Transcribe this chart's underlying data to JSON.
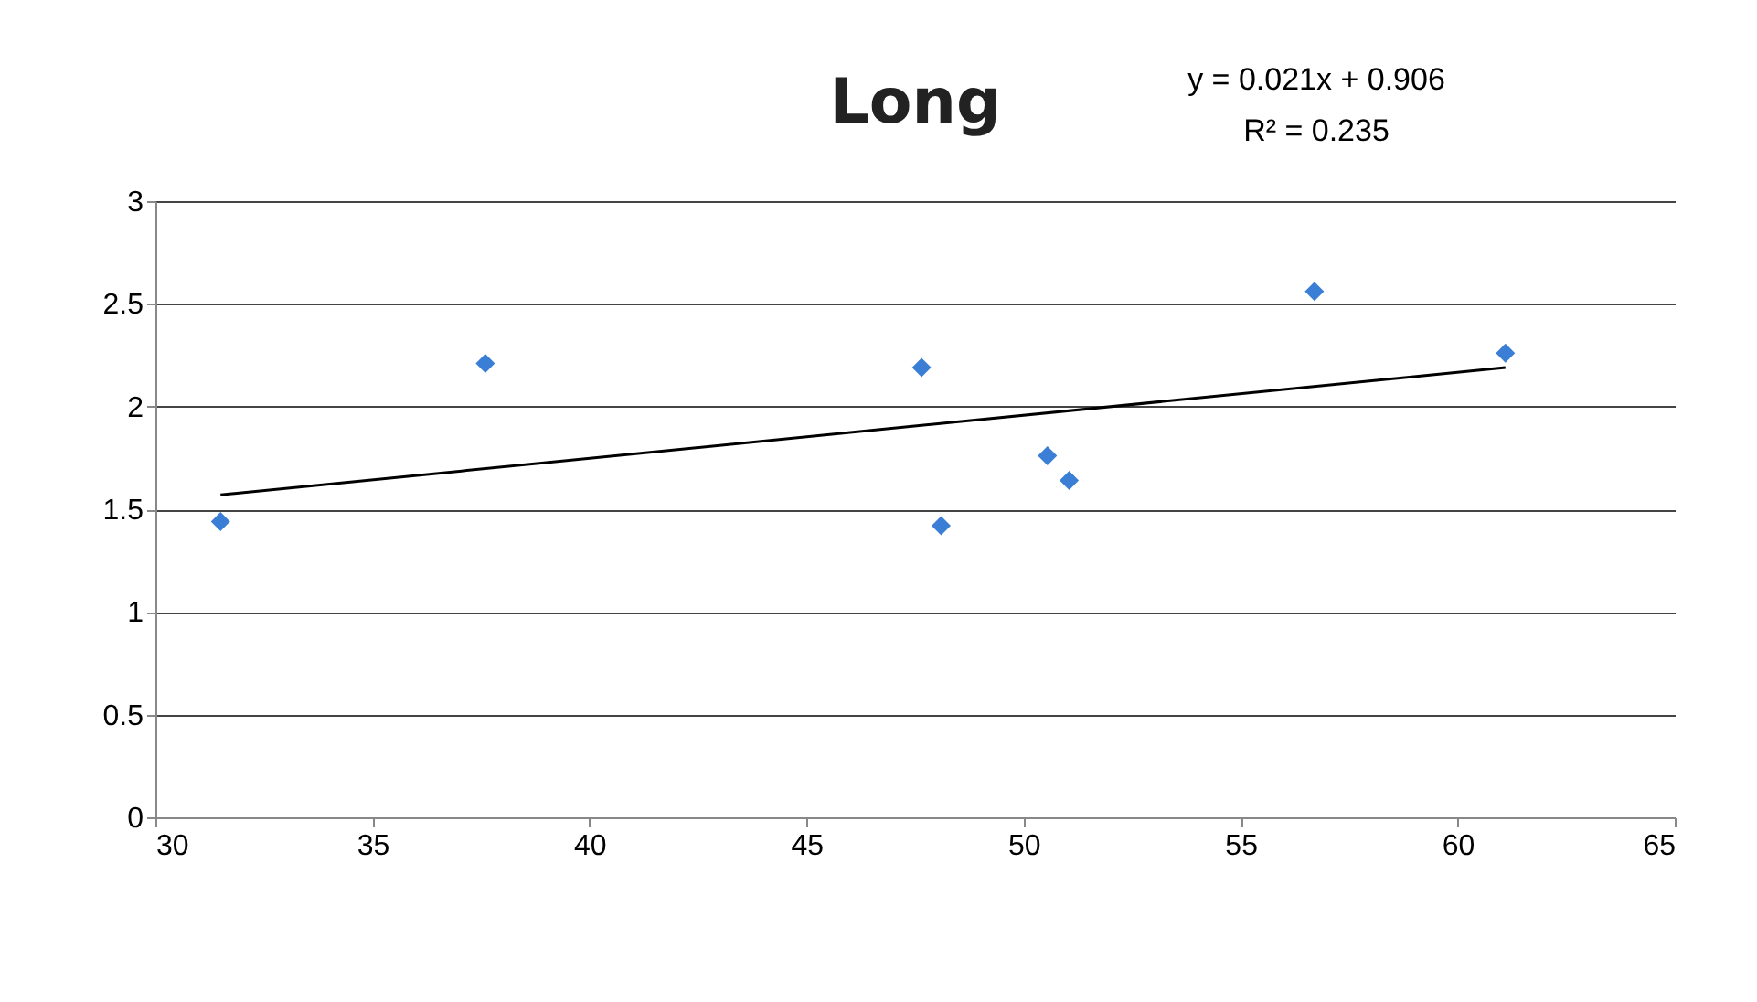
{
  "chart_data": {
    "type": "scatter",
    "title": "Long",
    "annotations": [
      "y = 0.021x + 0.906",
      "R² = 0.235"
    ],
    "xlim": [
      30,
      65
    ],
    "xticks": [
      30,
      35,
      40,
      45,
      50,
      55,
      60,
      65
    ],
    "ylim": [
      0,
      3
    ],
    "yticks": [
      0,
      0.5,
      1,
      1.5,
      2,
      2.5,
      3
    ],
    "grid": "y",
    "series": [
      {
        "marker": "diamond",
        "color": "#3a7fd5",
        "x": [
          31.5,
          37.6,
          47.65,
          48.1,
          50.55,
          51.05,
          56.7,
          61.1
        ],
        "values": [
          1.44,
          2.21,
          2.19,
          1.42,
          1.76,
          1.64,
          2.56,
          2.26
        ]
      },
      {
        "type": "line",
        "color": "#000000",
        "x": [
          31.5,
          61.1
        ],
        "values": [
          1.57,
          2.19
        ]
      }
    ]
  }
}
